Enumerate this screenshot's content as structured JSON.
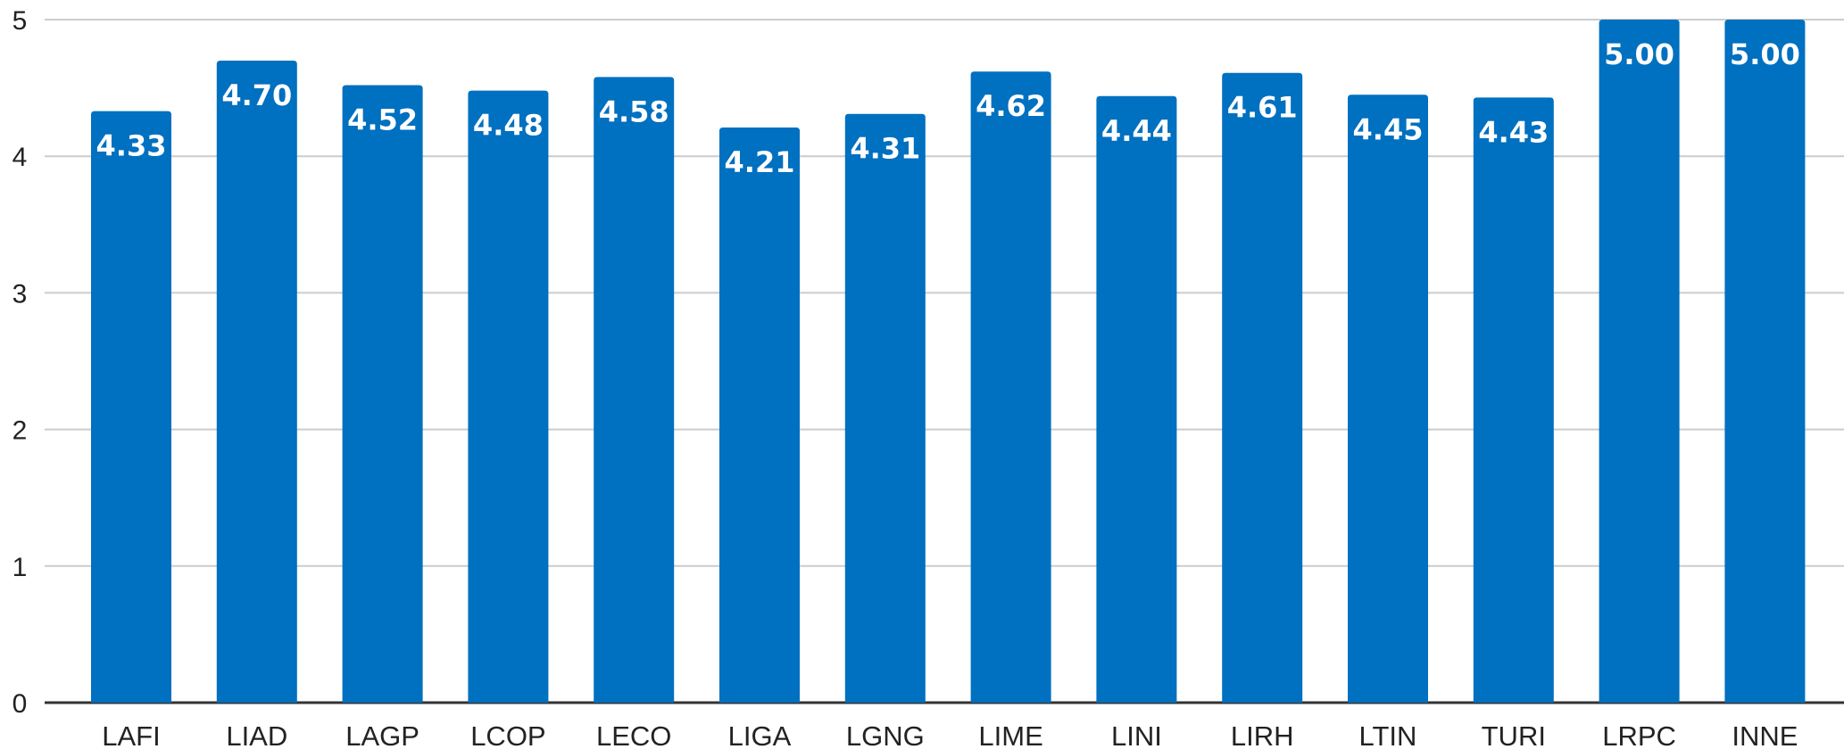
{
  "chart_data": {
    "type": "bar",
    "categories": [
      "LAFI",
      "LIAD",
      "LAGP",
      "LCOP",
      "LECO",
      "LIGA",
      "LGNG",
      "LIME",
      "LINI",
      "LIRH",
      "LTIN",
      "TURI",
      "LRPC",
      "INNE"
    ],
    "values": [
      4.33,
      4.7,
      4.52,
      4.48,
      4.58,
      4.21,
      4.31,
      4.62,
      4.44,
      4.61,
      4.45,
      4.43,
      5.0,
      5.0
    ],
    "value_labels": [
      "4.33",
      "4.70",
      "4.52",
      "4.48",
      "4.58",
      "4.21",
      "4.31",
      "4.62",
      "4.44",
      "4.61",
      "4.45",
      "4.43",
      "5.00",
      "5.00"
    ],
    "yticks": [
      "0",
      "1",
      "2",
      "3",
      "4",
      "5"
    ],
    "ylim": [
      0,
      5
    ],
    "title": "",
    "xlabel": "",
    "ylabel": "",
    "grid": true,
    "legend": "none",
    "bar_color": "#0070C0",
    "label_color": "#FFFFFF"
  }
}
